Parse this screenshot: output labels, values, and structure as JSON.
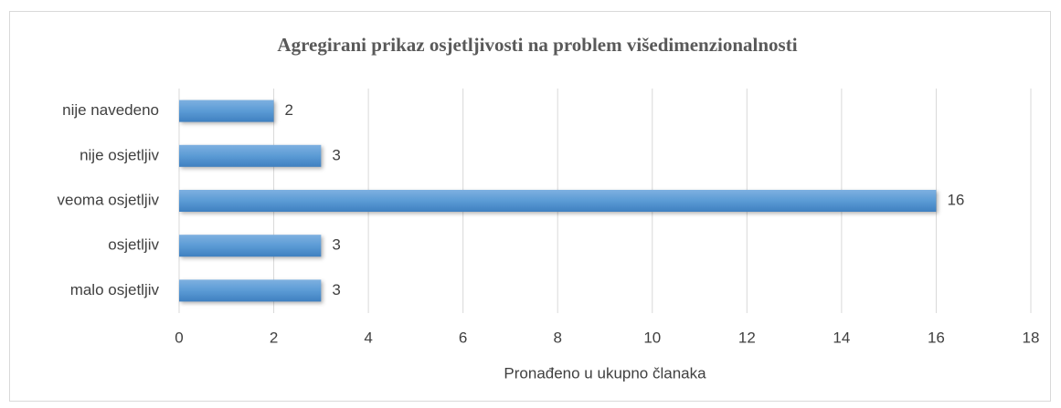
{
  "chart_data": {
    "type": "bar",
    "orientation": "horizontal",
    "title": "Agregirani prikaz osjetljivosti na problem višedimenzionalnosti",
    "categories": [
      "nije navedeno",
      "nije osjetljiv",
      "veoma osjetljiv",
      "osjetljiv",
      "malo osjetljiv"
    ],
    "values": [
      2,
      3,
      16,
      3,
      3
    ],
    "color": "#5b9bd5",
    "xlabel": "Pronađeno u ukupno članaka",
    "xlim": [
      0,
      18
    ],
    "xticks": [
      0,
      2,
      4,
      6,
      8,
      10,
      12,
      14,
      16,
      18
    ],
    "grid": true
  }
}
